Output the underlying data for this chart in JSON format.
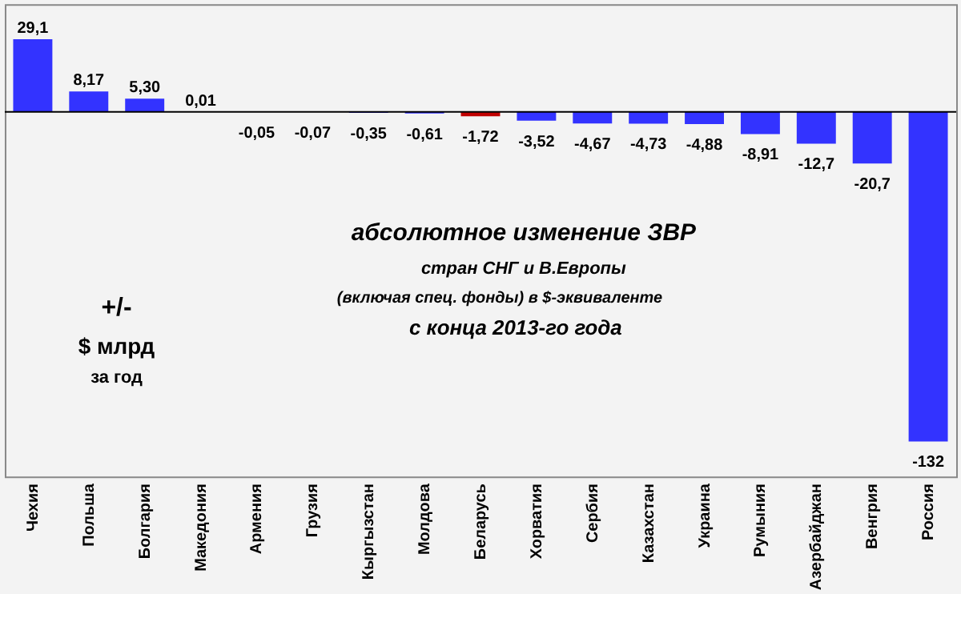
{
  "chart_data": {
    "type": "bar",
    "categories": [
      "Чехия",
      "Польша",
      "Болгария",
      "Македония",
      "Армения",
      "Грузия",
      "Кыргызстан",
      "Молдова",
      "Беларусь",
      "Хорватия",
      "Сербия",
      "Казахстан",
      "Украина",
      "Румыния",
      "Азербайджан",
      "Венгрия",
      "Россия"
    ],
    "values": [
      29.1,
      8.17,
      5.3,
      0.01,
      -0.05,
      -0.07,
      -0.35,
      -0.61,
      -1.72,
      -3.52,
      -4.67,
      -4.73,
      -4.88,
      -8.91,
      -12.7,
      -20.7,
      -132
    ],
    "value_labels": [
      "29,1",
      "8,17",
      "5,30",
      "0,01",
      "-0,05",
      "-0,07",
      "-0,35",
      "-0,61",
      "-1,72",
      "-3,52",
      "-4,67",
      "-4,73",
      "-4,88",
      "-8,91",
      "-12,7",
      "-20,7",
      "-132"
    ],
    "colors": [
      "#3333ff",
      "#3333ff",
      "#3333ff",
      "#3333ff",
      "#3333ff",
      "#3333ff",
      "#3333ff",
      "#3333ff",
      "#c00000",
      "#3333ff",
      "#3333ff",
      "#3333ff",
      "#3333ff",
      "#3333ff",
      "#3333ff",
      "#3333ff",
      "#3333ff"
    ],
    "annotations": [
      "абсолютное изменение  ЗВР",
      "стран СНГ и В.Европы",
      "(включая  спец. фонды) в $-эквиваленте",
      "с конца 2013-го года",
      "+/-",
      "$ млрд",
      "за год"
    ]
  }
}
